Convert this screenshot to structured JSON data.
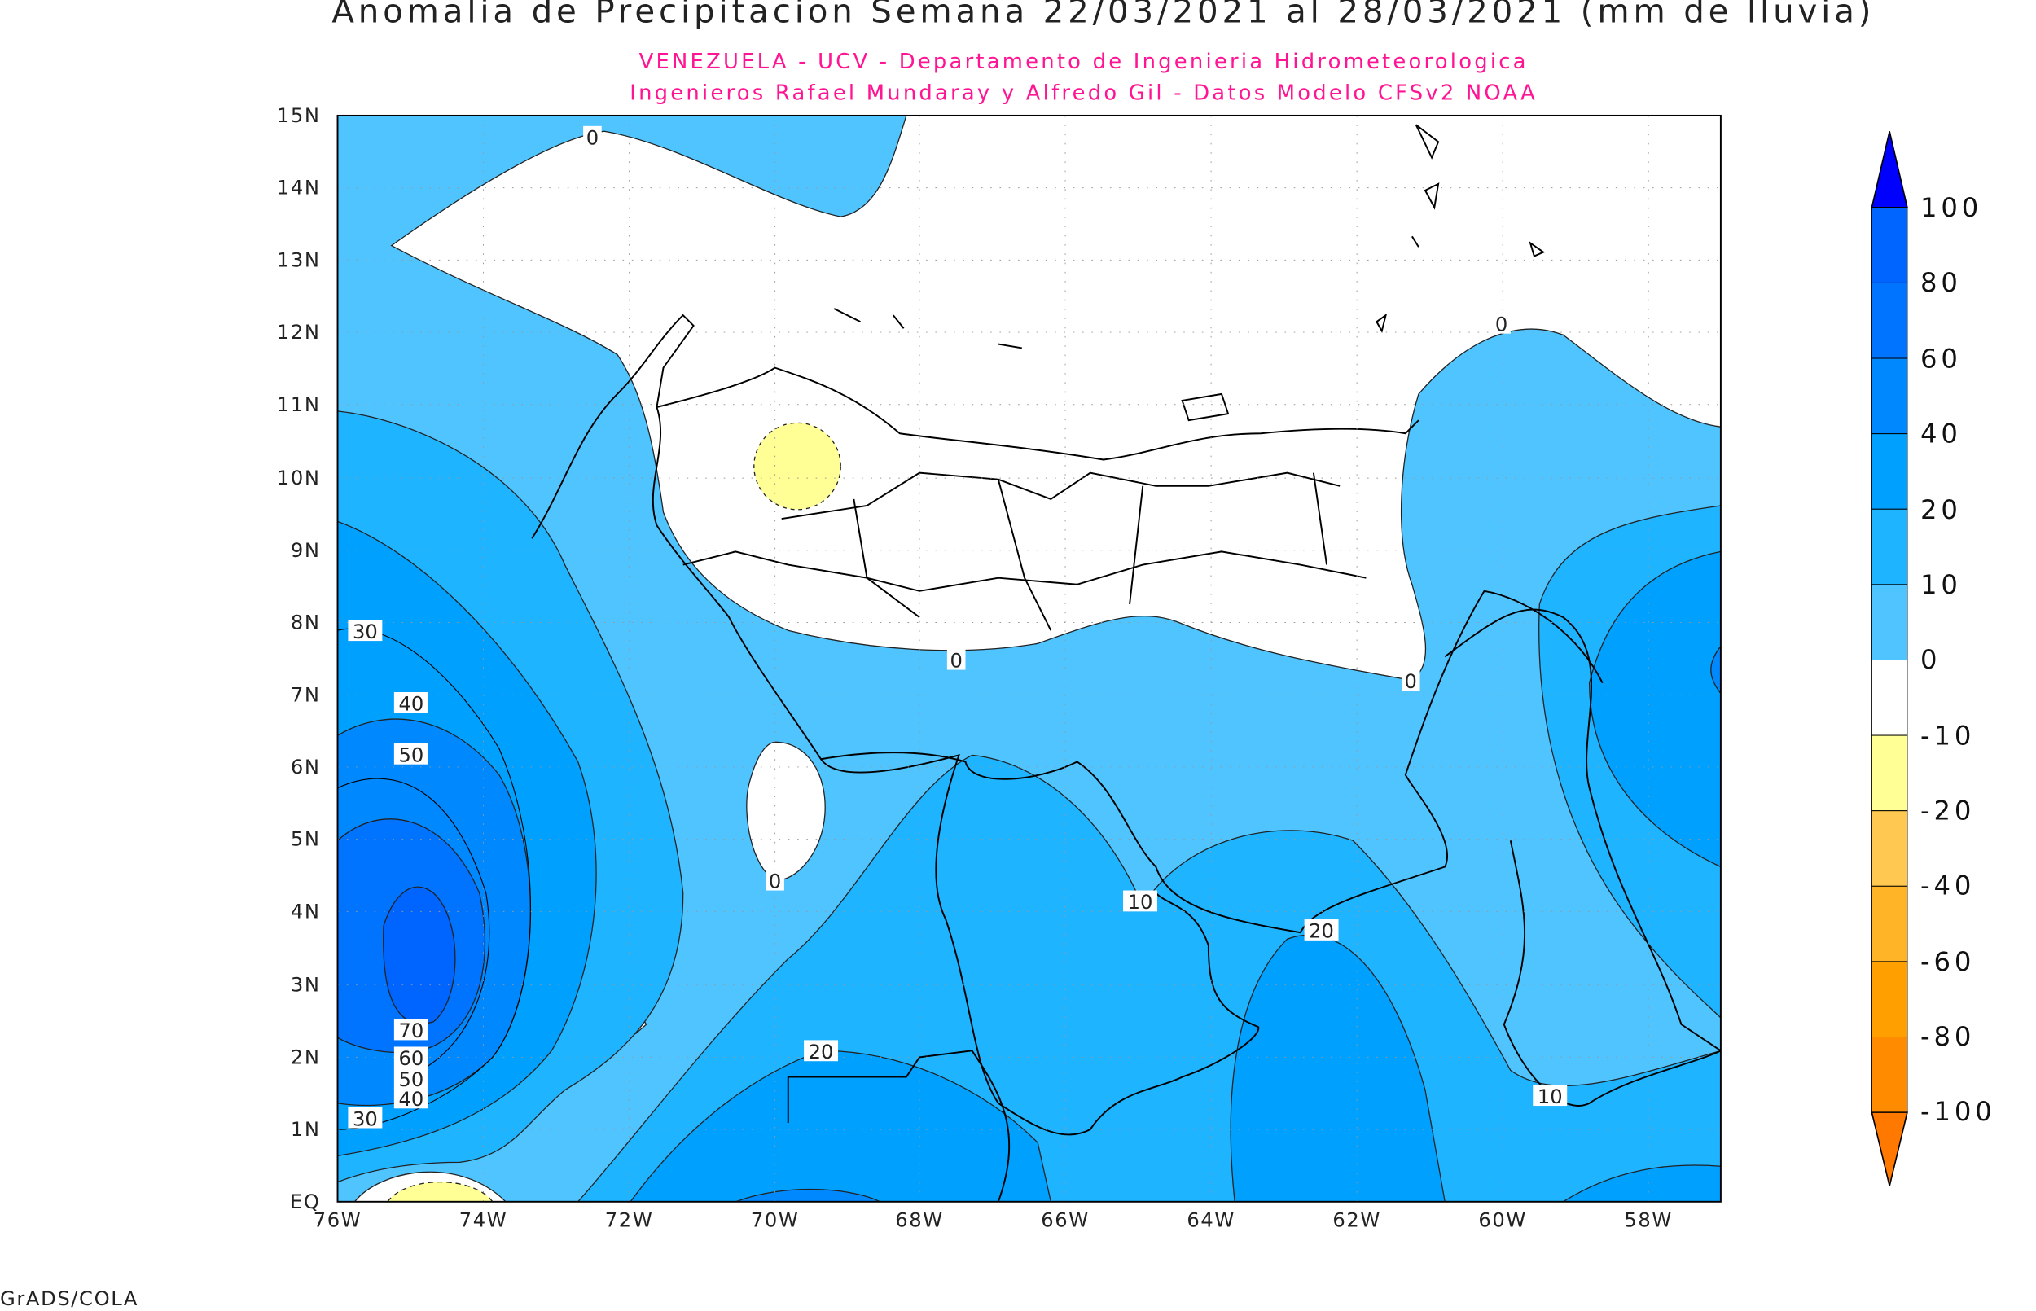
{
  "title": "Anomalia de Precipitacion Semana 22/03/2021 al 28/03/2021 (mm de lluvia)",
  "subtitle_1": "VENEZUELA - UCV - Departamento de Ingenieria Hidrometeorologica",
  "subtitle_2": "Ingenieros Rafael Mundaray y Alfredo Gil - Datos Modelo CFSv2 NOAA",
  "credit": "GrADS/COLA",
  "map": {
    "lon_range": [
      -76,
      -57
    ],
    "lat_range": [
      0,
      15
    ],
    "x_ticks": [
      "76W",
      "74W",
      "72W",
      "70W",
      "68W",
      "66W",
      "64W",
      "62W",
      "60W",
      "58W"
    ],
    "y_ticks": [
      "15N",
      "14N",
      "13N",
      "12N",
      "11N",
      "10N",
      "9N",
      "8N",
      "7N",
      "6N",
      "5N",
      "4N",
      "3N",
      "2N",
      "1N",
      "EQ"
    ],
    "grid": "dotted",
    "contour_labels": [
      "0",
      "0",
      "0",
      "0",
      "0",
      "30",
      "40",
      "50",
      "70",
      "60",
      "50",
      "40",
      "30",
      "20",
      "20",
      "10",
      "10"
    ]
  },
  "colorbar": {
    "labels": [
      "100",
      "80",
      "60",
      "40",
      "20",
      "10",
      "0",
      "-10",
      "-20",
      "-40",
      "-60",
      "-80",
      "-100"
    ],
    "colors": [
      "#0000ff",
      "#0064ff",
      "#0073ff",
      "#0088ff",
      "#00a0ff",
      "#1eb4ff",
      "#50c4ff",
      "#ffffff",
      "#ffff96",
      "#ffc850",
      "#ffb428",
      "#ffa000",
      "#ff8c00",
      "#ff7800"
    ]
  }
}
